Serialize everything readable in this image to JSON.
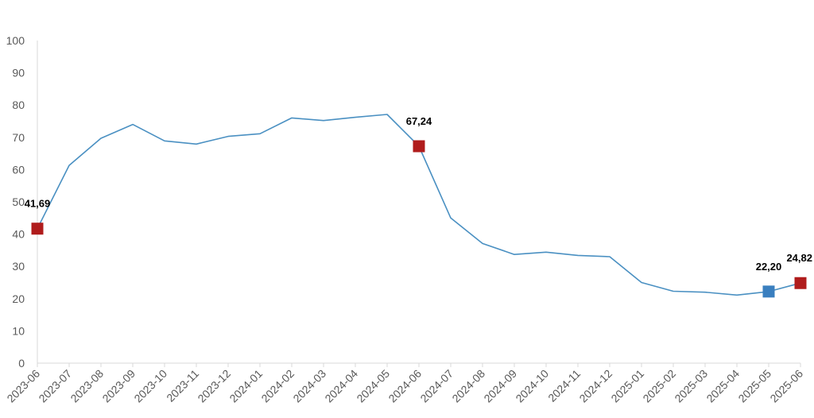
{
  "chart_data": {
    "type": "line",
    "x": [
      "2023-06",
      "2023-07",
      "2023-08",
      "2023-09",
      "2023-10",
      "2023-11",
      "2023-12",
      "2024-01",
      "2024-02",
      "2024-03",
      "2024-04",
      "2024-05",
      "2024-06",
      "2024-07",
      "2024-08",
      "2024-09",
      "2024-10",
      "2024-11",
      "2024-12",
      "2025-01",
      "2025-02",
      "2025-03",
      "2025-04",
      "2025-05",
      "2025-06"
    ],
    "series": [
      {
        "values": [
          41.69,
          61.3,
          69.7,
          74.0,
          68.9,
          67.9,
          70.3,
          71.1,
          76.0,
          75.2,
          76.2,
          77.1,
          67.24,
          45.0,
          37.1,
          33.7,
          34.4,
          33.4,
          33.0,
          25.0,
          22.3,
          22.0,
          21.1,
          22.2,
          24.82
        ],
        "color": "#4a90c2"
      }
    ],
    "ylim": [
      0,
      100
    ],
    "yticks": [
      0,
      10,
      20,
      30,
      40,
      50,
      60,
      70,
      80,
      90,
      100
    ],
    "grid": false,
    "annotations": [
      {
        "index": 0,
        "label": "41,69",
        "marker_color": "#b01c1c"
      },
      {
        "index": 12,
        "label": "67,24",
        "marker_color": "#b01c1c"
      },
      {
        "index": 23,
        "label": "22,20",
        "marker_color": "#3a7fbf"
      },
      {
        "index": 24,
        "label": "24,82",
        "marker_color": "#b01c1c"
      }
    ],
    "axis_color": "#d9d9d9"
  }
}
